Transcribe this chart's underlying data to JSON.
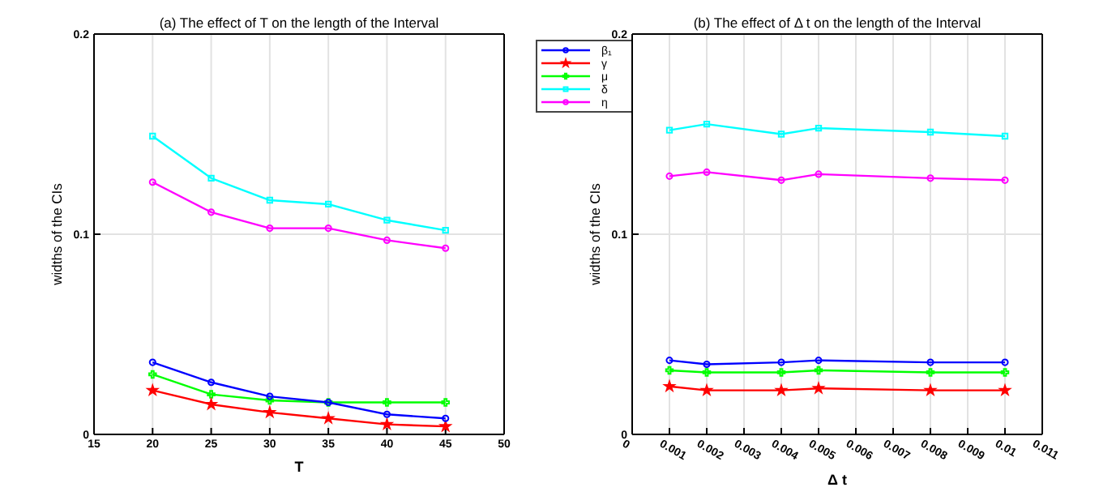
{
  "chart_data": [
    {
      "type": "line",
      "title": "(a) The effect of T on the length of the Interval",
      "xlabel": "T",
      "ylabel": "widths of the CIs",
      "x": [
        20,
        25,
        30,
        35,
        40,
        45
      ],
      "xlim": [
        15,
        50
      ],
      "xticks": [
        15,
        20,
        25,
        30,
        35,
        40,
        45,
        50
      ],
      "ylim": [
        0,
        0.2
      ],
      "yticks": [
        0,
        0.1,
        0.2
      ],
      "grid": true,
      "legend": "top right",
      "series": [
        {
          "name": "β₁",
          "color": "#0000ff",
          "marker": "circle",
          "values": [
            0.036,
            0.026,
            0.019,
            0.016,
            0.01,
            0.008
          ]
        },
        {
          "name": "γ",
          "color": "#ff0000",
          "marker": "star",
          "values": [
            0.022,
            0.015,
            0.011,
            0.008,
            0.005,
            0.004
          ]
        },
        {
          "name": "μ",
          "color": "#00ff00",
          "marker": "cross",
          "values": [
            0.03,
            0.02,
            0.017,
            0.016,
            0.016,
            0.016
          ]
        },
        {
          "name": "δ",
          "color": "#00ffff",
          "marker": "square",
          "values": [
            0.149,
            0.128,
            0.117,
            0.115,
            0.107,
            0.102
          ]
        },
        {
          "name": "η",
          "color": "#ff00ff",
          "marker": "circle",
          "values": [
            0.126,
            0.111,
            0.103,
            0.103,
            0.097,
            0.093
          ]
        }
      ]
    },
    {
      "type": "line",
      "title": "(b) The effect of Δ t on the length of the Interval",
      "xlabel": "Δ t",
      "ylabel": "widths of the CIs",
      "x": [
        0.001,
        0.002,
        0.004,
        0.005,
        0.008,
        0.01
      ],
      "xlim": [
        0,
        0.011
      ],
      "xticks": [
        0,
        0.001,
        0.002,
        0.003,
        0.004,
        0.005,
        0.006,
        0.007,
        0.008,
        0.009,
        0.01,
        0.011
      ],
      "ylim": [
        0,
        0.2
      ],
      "yticks": [
        0,
        0.1,
        0.2
      ],
      "grid": true,
      "series": [
        {
          "color": "#0000ff",
          "marker": "circle",
          "values": [
            0.037,
            0.035,
            0.036,
            0.037,
            0.036,
            0.036
          ]
        },
        {
          "color": "#ff0000",
          "marker": "star",
          "values": [
            0.024,
            0.022,
            0.022,
            0.023,
            0.022,
            0.022
          ]
        },
        {
          "color": "#00ff00",
          "marker": "cross",
          "values": [
            0.032,
            0.031,
            0.031,
            0.032,
            0.031,
            0.031
          ]
        },
        {
          "color": "#00ffff",
          "marker": "square",
          "values": [
            0.152,
            0.155,
            0.15,
            0.153,
            0.151,
            0.149
          ]
        },
        {
          "color": "#ff00ff",
          "marker": "circle",
          "values": [
            0.129,
            0.131,
            0.127,
            0.13,
            0.128,
            0.127
          ]
        }
      ]
    }
  ]
}
